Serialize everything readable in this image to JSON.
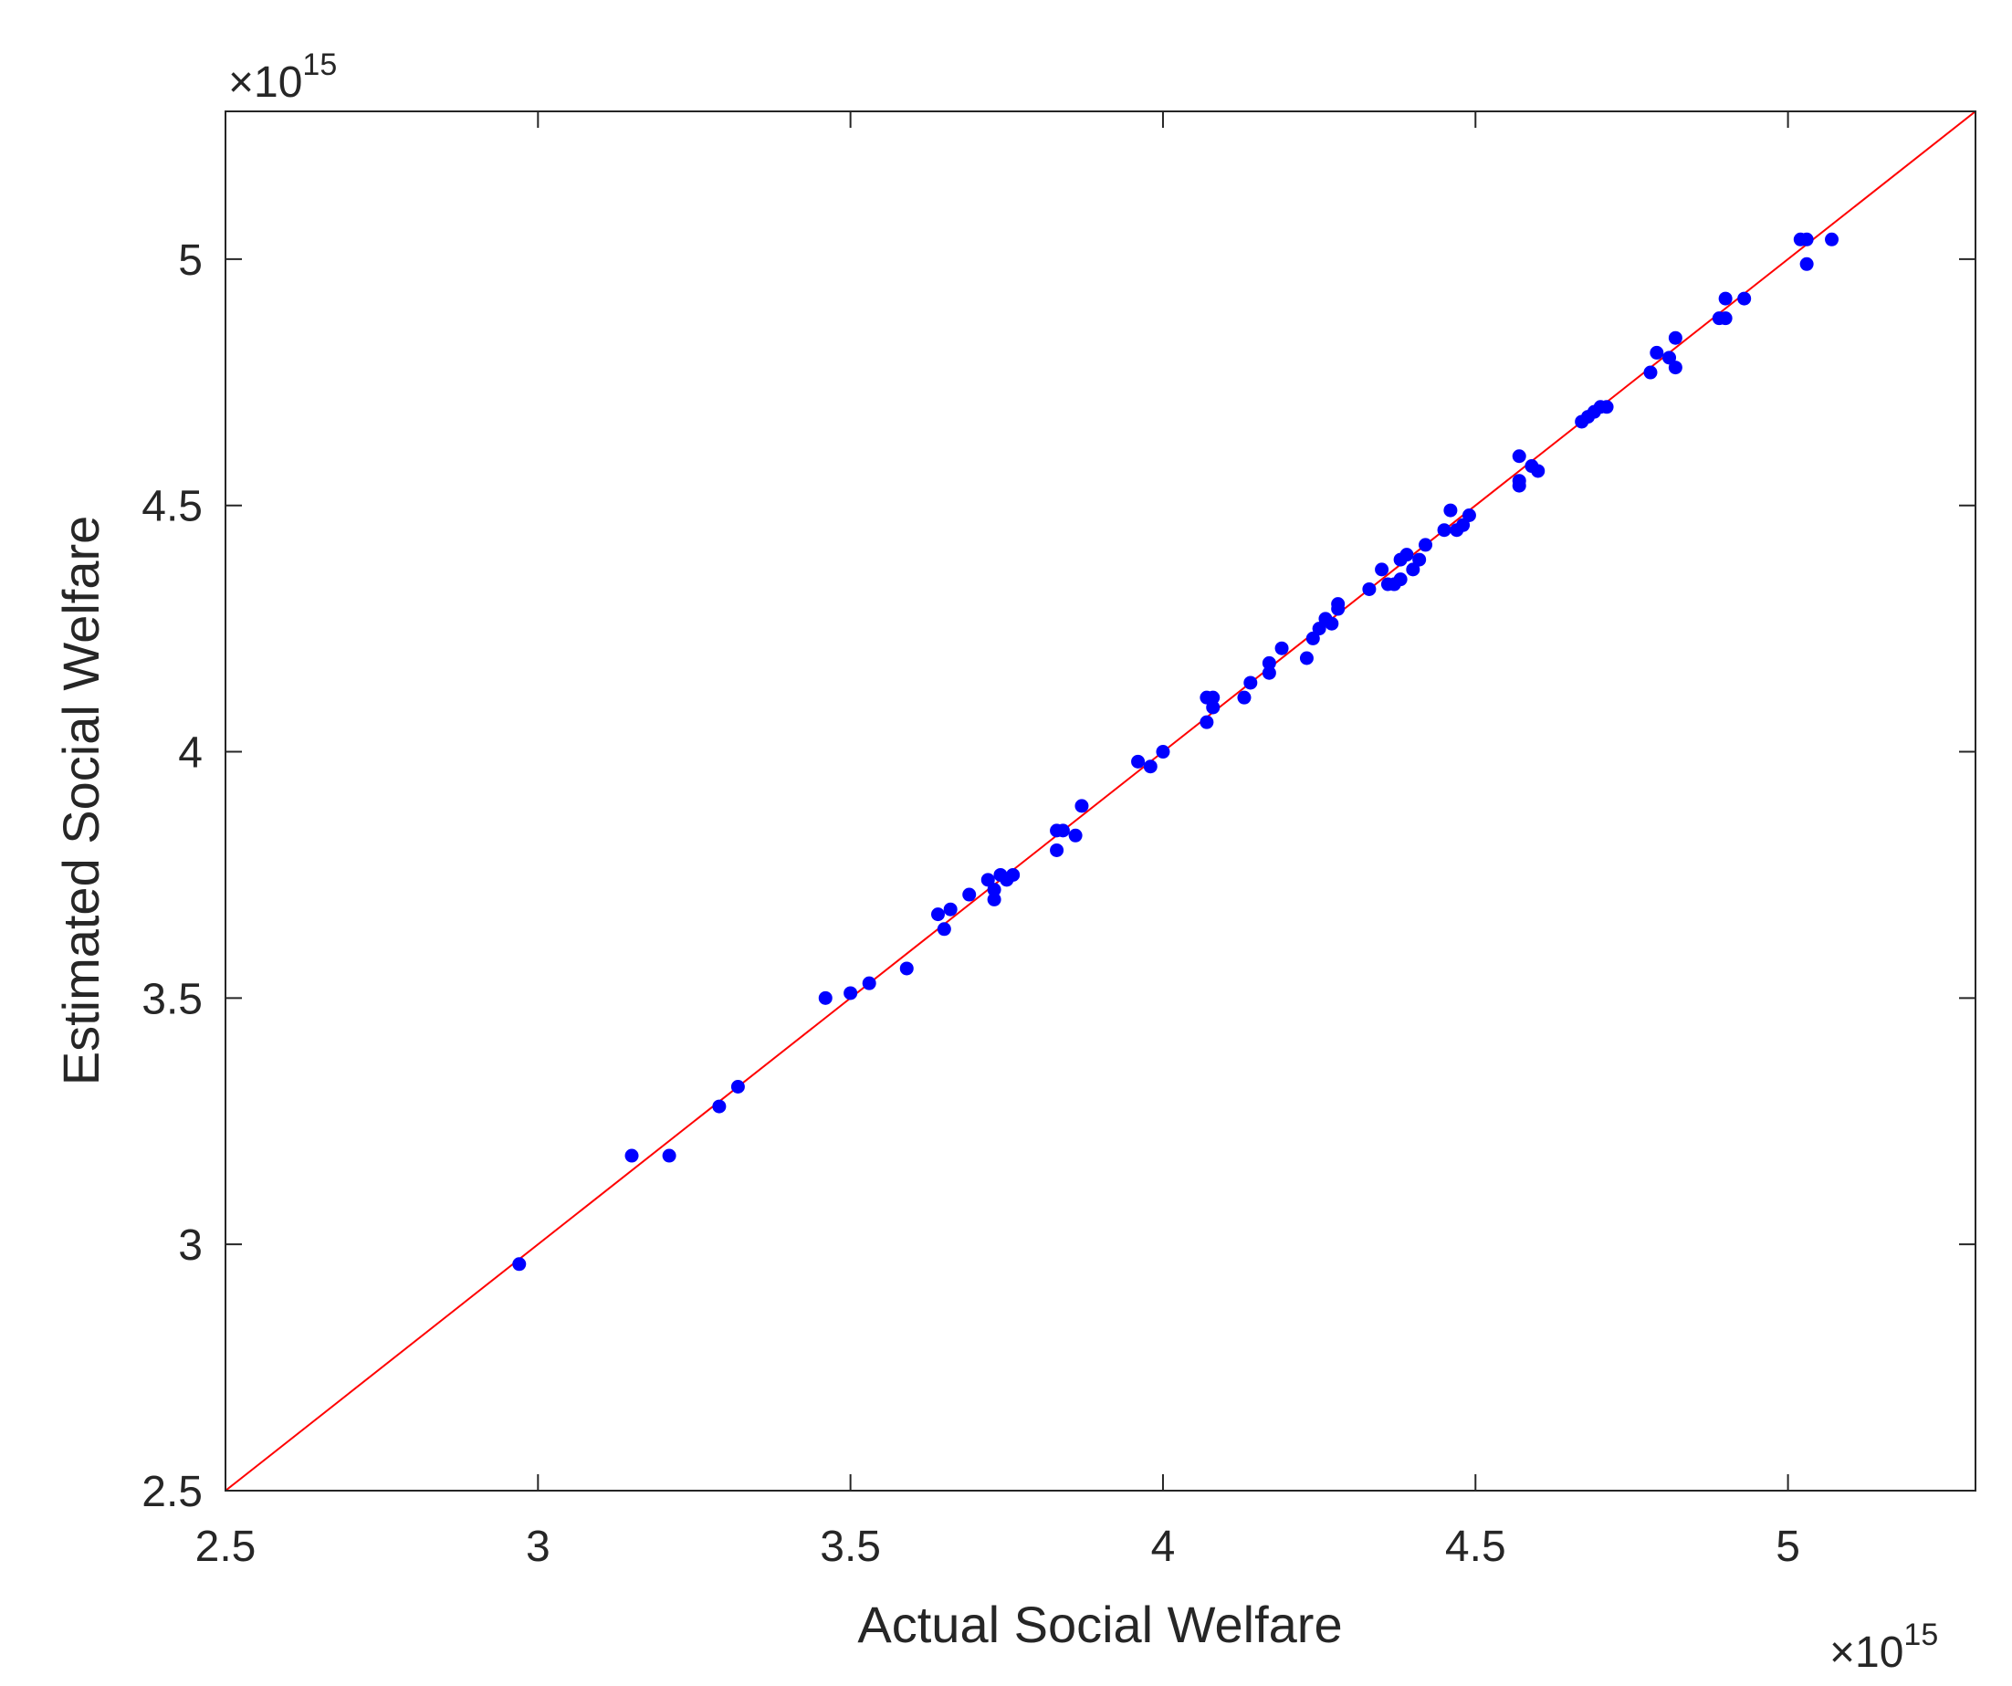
{
  "chart_data": {
    "type": "scatter",
    "title": "",
    "xlabel": "Actual Social Welfare",
    "ylabel": "Estimated Social Welfare",
    "x_exponent_base": "×10",
    "x_exponent_power": "15",
    "y_exponent_base": "×10",
    "y_exponent_power": "15",
    "xlim": [
      2.5,
      5.3
    ],
    "ylim": [
      2.5,
      5.3
    ],
    "xticks": [
      2.5,
      3,
      3.5,
      4,
      4.5,
      5
    ],
    "yticks": [
      2.5,
      3,
      3.5,
      4,
      4.5,
      5
    ],
    "xtick_labels": [
      "2.5",
      "3",
      "3.5",
      "4",
      "4.5",
      "5"
    ],
    "ytick_labels": [
      "2.5",
      "3",
      "3.5",
      "4",
      "4.5",
      "5"
    ],
    "grid": false,
    "reference_line": {
      "x": [
        2.5,
        5.3
      ],
      "y": [
        2.5,
        5.3
      ],
      "color": "#ff0000"
    },
    "series": [
      {
        "color": "#0000ff",
        "points": [
          [
            2.97,
            2.96
          ],
          [
            3.15,
            3.18
          ],
          [
            3.21,
            3.18
          ],
          [
            3.29,
            3.28
          ],
          [
            3.32,
            3.32
          ],
          [
            3.46,
            3.5
          ],
          [
            3.5,
            3.51
          ],
          [
            3.53,
            3.53
          ],
          [
            3.59,
            3.56
          ],
          [
            3.64,
            3.67
          ],
          [
            3.65,
            3.64
          ],
          [
            3.66,
            3.68
          ],
          [
            3.69,
            3.71
          ],
          [
            3.72,
            3.74
          ],
          [
            3.73,
            3.7
          ],
          [
            3.73,
            3.72
          ],
          [
            3.74,
            3.75
          ],
          [
            3.75,
            3.74
          ],
          [
            3.76,
            3.75
          ],
          [
            3.83,
            3.8
          ],
          [
            3.83,
            3.84
          ],
          [
            3.84,
            3.84
          ],
          [
            3.86,
            3.83
          ],
          [
            3.87,
            3.89
          ],
          [
            3.96,
            3.98
          ],
          [
            3.98,
            3.97
          ],
          [
            4.0,
            4.0
          ],
          [
            4.07,
            4.06
          ],
          [
            4.07,
            4.11
          ],
          [
            4.08,
            4.11
          ],
          [
            4.08,
            4.09
          ],
          [
            4.13,
            4.11
          ],
          [
            4.14,
            4.14
          ],
          [
            4.17,
            4.16
          ],
          [
            4.17,
            4.18
          ],
          [
            4.19,
            4.21
          ],
          [
            4.23,
            4.19
          ],
          [
            4.24,
            4.23
          ],
          [
            4.25,
            4.25
          ],
          [
            4.26,
            4.27
          ],
          [
            4.27,
            4.26
          ],
          [
            4.28,
            4.29
          ],
          [
            4.28,
            4.3
          ],
          [
            4.33,
            4.33
          ],
          [
            4.35,
            4.37
          ],
          [
            4.36,
            4.34
          ],
          [
            4.37,
            4.34
          ],
          [
            4.38,
            4.35
          ],
          [
            4.38,
            4.39
          ],
          [
            4.39,
            4.4
          ],
          [
            4.4,
            4.37
          ],
          [
            4.41,
            4.39
          ],
          [
            4.42,
            4.42
          ],
          [
            4.45,
            4.45
          ],
          [
            4.46,
            4.49
          ],
          [
            4.47,
            4.45
          ],
          [
            4.48,
            4.46
          ],
          [
            4.49,
            4.48
          ],
          [
            4.57,
            4.54
          ],
          [
            4.57,
            4.55
          ],
          [
            4.57,
            4.6
          ],
          [
            4.59,
            4.58
          ],
          [
            4.6,
            4.57
          ],
          [
            4.67,
            4.67
          ],
          [
            4.68,
            4.68
          ],
          [
            4.69,
            4.69
          ],
          [
            4.7,
            4.7
          ],
          [
            4.71,
            4.7
          ],
          [
            4.78,
            4.77
          ],
          [
            4.79,
            4.81
          ],
          [
            4.81,
            4.8
          ],
          [
            4.82,
            4.78
          ],
          [
            4.82,
            4.84
          ],
          [
            4.89,
            4.88
          ],
          [
            4.9,
            4.92
          ],
          [
            4.9,
            4.88
          ],
          [
            4.93,
            4.92
          ],
          [
            5.02,
            5.04
          ],
          [
            5.03,
            5.04
          ],
          [
            5.03,
            4.99
          ],
          [
            5.07,
            5.04
          ]
        ]
      }
    ]
  }
}
